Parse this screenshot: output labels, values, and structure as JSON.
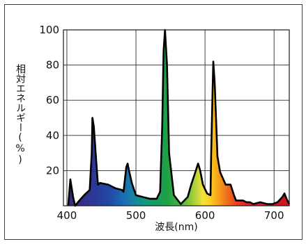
{
  "chart_data": {
    "type": "area",
    "title": "",
    "xlabel": "波長(nm)",
    "ylabel": "相対エネルギー(%)",
    "xlim": [
      395,
      722
    ],
    "ylim": [
      0,
      100
    ],
    "xticks": [
      400,
      500,
      600,
      700
    ],
    "yticks": [
      20,
      40,
      60,
      80,
      100
    ],
    "grid": true,
    "fill": "visible-spectrum gradient (violet to red)",
    "outline_color": "#000000",
    "series": [
      {
        "x": [
          402,
          405,
          409,
          412,
          416,
          425,
          433,
          436,
          437,
          439,
          442,
          445,
          448,
          460,
          470,
          480,
          482,
          484,
          486,
          488,
          490,
          494,
          500,
          510,
          520,
          530,
          535,
          538,
          540,
          542,
          545,
          548,
          555,
          565,
          575,
          580,
          585,
          590,
          593,
          597,
          603,
          608,
          609,
          611,
          612,
          614,
          618,
          622,
          630,
          637,
          642,
          645,
          655,
          660,
          665,
          670,
          680,
          690,
          698,
          705,
          712,
          715,
          718,
          722
        ],
        "y": [
          0,
          15,
          5,
          0,
          2,
          6,
          9,
          30,
          50,
          45,
          28,
          12,
          13,
          12,
          10,
          9,
          8,
          15,
          22,
          24,
          20,
          13,
          6,
          5,
          4,
          4,
          8,
          45,
          88,
          100,
          80,
          30,
          6,
          1,
          5,
          12,
          18,
          24,
          20,
          12,
          7,
          6,
          30,
          66,
          82,
          70,
          28,
          19,
          12,
          12,
          6,
          3,
          3,
          2,
          2,
          1,
          2,
          1,
          1,
          2,
          5,
          7,
          4,
          1
        ]
      }
    ]
  }
}
